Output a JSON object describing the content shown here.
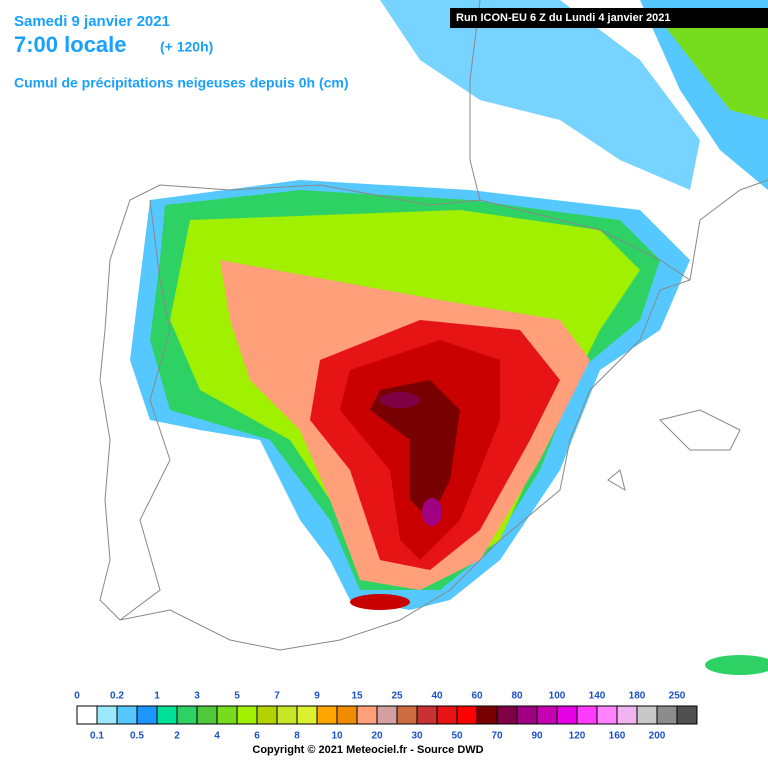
{
  "header": {
    "date": "Samedi 9 janvier 2021",
    "time": "7:00 locale",
    "lead": "(+ 120h)",
    "subtitle": "Cumul de précipitations neigeuses depuis 0h (cm)",
    "run": "Run ICON-EU 6 Z du Lundi 4 janvier 2021"
  },
  "legend": {
    "thresholds": [
      0,
      0.1,
      0.2,
      0.5,
      1,
      2,
      3,
      4,
      5,
      6,
      7,
      8,
      9,
      10,
      15,
      20,
      25,
      30,
      40,
      50,
      60,
      70,
      80,
      90,
      100,
      120,
      140,
      160,
      180,
      200,
      250
    ],
    "colors": [
      "#ffffff",
      "#9be8ff",
      "#55c8ff",
      "#1e96ff",
      "#00e096",
      "#2ed264",
      "#50c83c",
      "#78dc1e",
      "#a0f000",
      "#b4d200",
      "#c8e628",
      "#dcf032",
      "#ffa500",
      "#f08c00",
      "#ffa07a",
      "#d2a0a0",
      "#cd6c40",
      "#c83232",
      "#e61414",
      "#ff0000",
      "#780000",
      "#800046",
      "#a00082",
      "#c800b4",
      "#e600e6",
      "#ff3cff",
      "#ff82ff",
      "#f0b4f0",
      "#c8c8c8",
      "#8c8c8c",
      "#505050"
    ]
  },
  "footer": {
    "copyright": "Copyright © 2021 Meteociel.fr - Source DWD"
  }
}
